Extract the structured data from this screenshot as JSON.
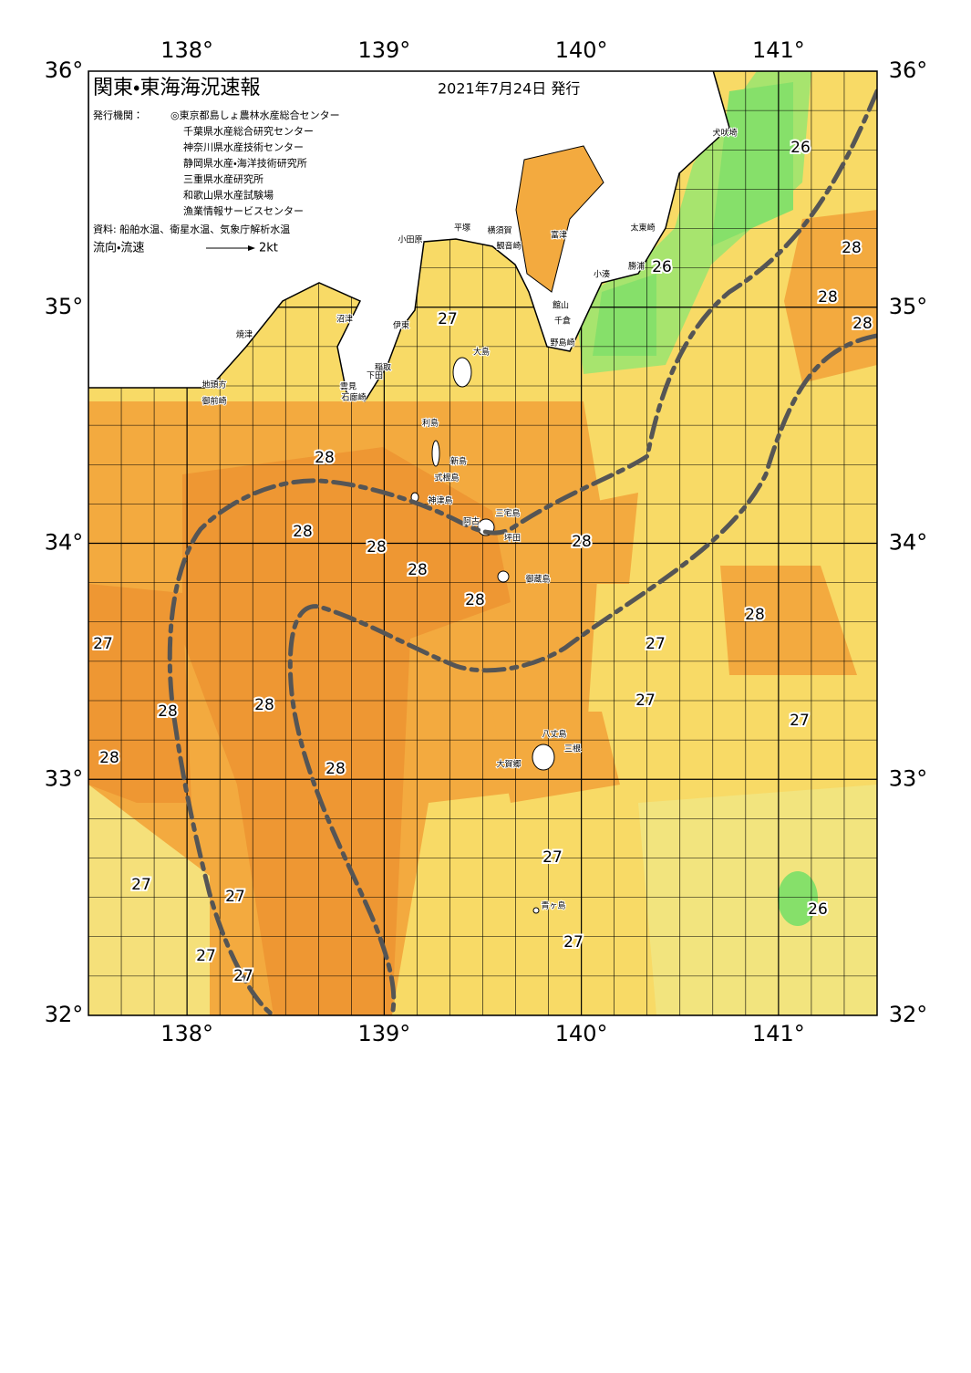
{
  "header": {
    "title": "関東・東海海況速報",
    "date": "2021年7月24日 発行",
    "agencies_label": "発行機関：",
    "agencies": [
      "◎東京都島しょ農林水産総合センター",
      "千葉県水産総合研究センター",
      "神奈川県水産技術センター",
      "静岡県水産・海洋技術研究所",
      "三重県水産研究所",
      "和歌山県水産試験場",
      "漁業情報サービスセンター"
    ],
    "source": "資料: 船舶水温、衛星水温、気象庁解析水温",
    "current_label": "流向・流速",
    "current_scale": "2kt"
  },
  "axes": {
    "lon_labels": [
      "138°",
      "139°",
      "140°",
      "141°"
    ],
    "lat_labels": [
      "36°",
      "35°",
      "34°",
      "33°",
      "32°"
    ]
  },
  "temperature_labels": [
    "26",
    "28",
    "26",
    "28",
    "28",
    "27",
    "28",
    "28",
    "28",
    "28",
    "28",
    "28",
    "28",
    "27",
    "27",
    "27",
    "28",
    "28",
    "27",
    "28",
    "28",
    "27",
    "27",
    "27",
    "26",
    "27",
    "27",
    "27"
  ],
  "place_names": [
    "犬吠埼",
    "太東崎",
    "勝浦",
    "小湊",
    "館山",
    "千倉",
    "野島崎",
    "富津",
    "横須賀",
    "観音崎",
    "平塚",
    "小田原",
    "沼津",
    "伊東",
    "大島",
    "稲取",
    "下田",
    "焼津",
    "地頭方",
    "御前崎",
    "雲見",
    "石廊崎",
    "利島",
    "新島",
    "式根島",
    "神津島",
    "阿古",
    "三宅島",
    "坪田",
    "御蔵島",
    "八丈島",
    "三根",
    "大賀郷",
    "青ヶ島"
  ]
}
